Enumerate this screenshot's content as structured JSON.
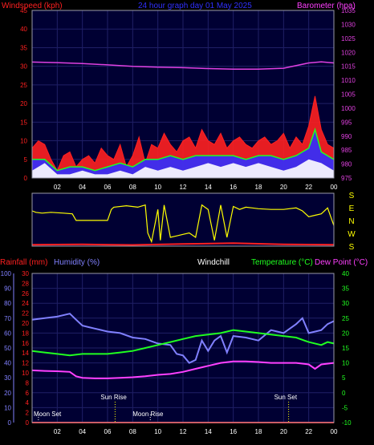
{
  "colors": {
    "background": "#000000",
    "plot_bg": "#000033",
    "grid": "#1f1f66",
    "frame": "#9a9aaa",
    "windspeed": "#ff2020",
    "gust": "#ff2020",
    "average": "#20ff20",
    "low": "#ffffff",
    "mid": "#3030ff",
    "barometer": "#e040e0",
    "direction": "#ffff00",
    "direction_low": "#ff2020",
    "rainfall": "#ff2020",
    "humidity": "#8080ff",
    "windchill": "#ffffff",
    "temperature": "#20ff20",
    "dewpoint": "#ff40ff",
    "title": "#3030ff",
    "text": "#ffffff",
    "moon": "#ffffff",
    "sun": "#ffff00"
  },
  "header": {
    "windspeed_label": "Windspeed (kph)",
    "title": "24 hour graph day  01 May 2025",
    "barometer_label": "Barometer (hpa)"
  },
  "direction_labels": [
    "S",
    "E",
    "N",
    "W",
    "S"
  ],
  "lower_header": {
    "rainfall_label": "Rainfall (mm)",
    "humidity_label": "Humidity (%)",
    "windchill_label": "Windchill",
    "temperature_label": "Temperature (°C)",
    "dewpoint_label": "Dew Point (°C)"
  },
  "events": [
    {
      "label": "Moon Set",
      "hour": 0.5
    },
    {
      "label": "Sun Rise",
      "hour": 6.6
    },
    {
      "label": "Moon Rise",
      "hour": 9.4
    },
    {
      "label": "Sun Set",
      "hour": 20.4
    }
  ],
  "chart_data": [
    {
      "type": "area",
      "panel": "wind-barometer",
      "x_ticks": [
        "02",
        "04",
        "06",
        "08",
        "10",
        "12",
        "14",
        "16",
        "18",
        "20",
        "22",
        "00"
      ],
      "xlim_hours": [
        0,
        24
      ],
      "ylabel_left": "Windspeed (kph)",
      "ylim_left": [
        0,
        45
      ],
      "yticks_left": [
        0,
        5,
        10,
        15,
        20,
        25,
        30,
        35,
        40,
        45
      ],
      "ylabel_right": "Barometer (hpa)",
      "ylim_right": [
        975,
        1035
      ],
      "yticks_right": [
        975,
        980,
        985,
        990,
        995,
        1000,
        1005,
        1010,
        1015,
        1020,
        1025,
        1030,
        1035
      ],
      "grid": true,
      "series": [
        {
          "name": "Windspeed (kph)",
          "kind": "gust",
          "x": [
            0,
            0.5,
            1,
            1.5,
            2,
            2.5,
            3,
            3.5,
            4,
            4.5,
            5,
            5.5,
            6,
            6.5,
            7,
            7.5,
            8,
            8.5,
            9,
            9.5,
            10,
            10.5,
            11,
            11.5,
            12,
            12.5,
            13,
            13.5,
            14,
            14.5,
            15,
            15.5,
            16,
            16.5,
            17,
            17.5,
            18,
            18.5,
            19,
            19.5,
            20,
            20.5,
            21,
            21.5,
            22,
            22.5,
            23,
            23.5,
            24
          ],
          "values": [
            8,
            10,
            9,
            5,
            2,
            6,
            7,
            3,
            5,
            6,
            4,
            8,
            6,
            5,
            9,
            3,
            6,
            11,
            4,
            9,
            8,
            12,
            9,
            7,
            10,
            11,
            8,
            13,
            10,
            9,
            12,
            8,
            10,
            11,
            9,
            8,
            10,
            11,
            9,
            10,
            12,
            8,
            11,
            9,
            14,
            22,
            13,
            9,
            8
          ]
        },
        {
          "name": "Average",
          "kind": "average",
          "x": [
            0,
            1,
            2,
            3,
            4,
            5,
            6,
            7,
            8,
            9,
            10,
            11,
            12,
            13,
            14,
            15,
            16,
            17,
            18,
            19,
            20,
            21,
            22,
            22.5,
            23,
            24
          ],
          "values": [
            5,
            5,
            2,
            3,
            3,
            2,
            3,
            4,
            3,
            5,
            5,
            6,
            5,
            6,
            6,
            6,
            6,
            5,
            6,
            6,
            5,
            6,
            8,
            13,
            7,
            5
          ]
        },
        {
          "name": "Low",
          "kind": "low",
          "x": [
            0,
            1,
            2,
            3,
            4,
            5,
            6,
            7,
            8,
            9,
            10,
            11,
            12,
            13,
            14,
            15,
            16,
            17,
            18,
            19,
            20,
            21,
            22,
            23,
            24
          ],
          "values": [
            2,
            4,
            1,
            1,
            2,
            1,
            1,
            2,
            1,
            3,
            2,
            3,
            2,
            3,
            4,
            3,
            4,
            3,
            4,
            3,
            2,
            3,
            5,
            4,
            2
          ]
        },
        {
          "name": "Barometer (hpa)",
          "kind": "barometer",
          "x": [
            0,
            2,
            4,
            6,
            8,
            10,
            12,
            14,
            16,
            18,
            20,
            22,
            23,
            24
          ],
          "values": [
            1016.5,
            1016.3,
            1016,
            1015.5,
            1015,
            1014.7,
            1014.5,
            1014.2,
            1014,
            1014,
            1014.3,
            1016.2,
            1016.6,
            1016.2
          ]
        }
      ]
    },
    {
      "type": "line",
      "panel": "wind-direction",
      "x_ticks": [
        "02",
        "04",
        "06",
        "08",
        "10",
        "12",
        "14",
        "16",
        "18",
        "20",
        "22",
        "00"
      ],
      "xlim_hours": [
        0,
        24
      ],
      "ylim": [
        0,
        360
      ],
      "series": [
        {
          "name": "Direction",
          "kind": "direction",
          "x": [
            0,
            0.3,
            0.8,
            1.5,
            2.5,
            3.2,
            3.5,
            6,
            6.3,
            6.5,
            7.5,
            8.4,
            9,
            9.2,
            9.5,
            10,
            10.2,
            10.5,
            11,
            11.5,
            12,
            12.5,
            13,
            13.5,
            14,
            14.5,
            15,
            15.5,
            16,
            16.5,
            17,
            17.5,
            18,
            19,
            20,
            21,
            21.5,
            22,
            22.5,
            23,
            23.5,
            24
          ],
          "values": [
            240,
            230,
            225,
            230,
            225,
            220,
            175,
            175,
            250,
            265,
            275,
            265,
            280,
            90,
            30,
            250,
            40,
            280,
            60,
            70,
            80,
            90,
            60,
            280,
            250,
            40,
            280,
            60,
            270,
            250,
            265,
            260,
            255,
            250,
            250,
            260,
            240,
            200,
            210,
            220,
            260,
            140
          ]
        },
        {
          "name": "Low direction",
          "kind": "direction_low",
          "x": [
            0,
            4,
            8,
            12,
            16,
            20,
            24
          ],
          "values": [
            10,
            12,
            8,
            15,
            20,
            12,
            10
          ]
        }
      ]
    },
    {
      "type": "line",
      "panel": "temperature-humidity",
      "x_ticks": [
        "02",
        "04",
        "06",
        "08",
        "10",
        "12",
        "14",
        "16",
        "18",
        "20",
        "22",
        "00"
      ],
      "xlim_hours": [
        0,
        24
      ],
      "ylabel_left": "Humidity (%)",
      "ylim_left": [
        0,
        100
      ],
      "yticks_left": [
        0,
        10,
        20,
        30,
        40,
        50,
        60,
        70,
        80,
        90,
        100
      ],
      "ylabel_rainfall": "Rainfall (mm)",
      "ylim_rainfall": [
        0,
        30
      ],
      "yticks_rainfall": [
        0,
        2,
        4,
        6,
        8,
        10,
        12,
        14,
        16,
        18,
        20,
        22,
        24,
        26,
        28,
        30
      ],
      "ylabel_right": "Temperature (°C)",
      "ylim_right": [
        -10,
        40
      ],
      "yticks_right": [
        -10,
        -5,
        0,
        5,
        10,
        15,
        20,
        25,
        30,
        35,
        40
      ],
      "grid": true,
      "series": [
        {
          "name": "Humidity (%)",
          "kind": "humidity",
          "x": [
            0,
            1,
            2,
            3,
            3.5,
            4,
            4.5,
            5,
            6,
            7,
            8,
            9,
            10,
            11,
            11.5,
            12,
            12.5,
            13,
            13.5,
            14,
            14.5,
            15,
            15.5,
            16,
            17,
            18,
            19,
            20,
            21,
            21.5,
            22,
            23,
            23.5,
            24
          ],
          "values": [
            69,
            70,
            71,
            73,
            69,
            65,
            64,
            63,
            61,
            60,
            57,
            56,
            53,
            52,
            46,
            45,
            40,
            42,
            55,
            48,
            55,
            58,
            47,
            58,
            57,
            55,
            62,
            60,
            66,
            70,
            60,
            62,
            66,
            68
          ]
        },
        {
          "name": "Temperature (°C)",
          "kind": "temperature",
          "x": [
            0,
            1,
            2,
            3,
            4,
            5,
            6,
            7,
            8,
            9,
            10,
            11,
            12,
            13,
            14,
            15,
            16,
            17,
            18,
            19,
            20,
            21,
            22,
            23,
            23.5,
            24
          ],
          "values": [
            14,
            13.5,
            13,
            12.5,
            13,
            13,
            13,
            13.5,
            14,
            15,
            16,
            17,
            18,
            19,
            19.5,
            20,
            21,
            20.5,
            20,
            19.5,
            19,
            18.5,
            17,
            16,
            17,
            16.5
          ]
        },
        {
          "name": "Dew Point (°C)",
          "kind": "dewpoint",
          "x": [
            0,
            1,
            2,
            3,
            3.5,
            4,
            5,
            6,
            7,
            8,
            9,
            10,
            11,
            12,
            13,
            14,
            15,
            16,
            17,
            18,
            19,
            20,
            21,
            22,
            22.5,
            23,
            24
          ],
          "values": [
            7.5,
            7.3,
            7.2,
            7.0,
            5.5,
            5.0,
            4.8,
            4.8,
            5.0,
            5.2,
            5.5,
            6.0,
            6.3,
            7.0,
            8.0,
            9.0,
            10.0,
            10.5,
            10.5,
            10.3,
            10.0,
            10.0,
            10.0,
            9.5,
            8.0,
            9.5,
            10.0
          ]
        },
        {
          "name": "Rainfall (mm)",
          "kind": "rainfall",
          "x": [
            0,
            24
          ],
          "values": [
            0,
            0
          ]
        }
      ]
    }
  ]
}
